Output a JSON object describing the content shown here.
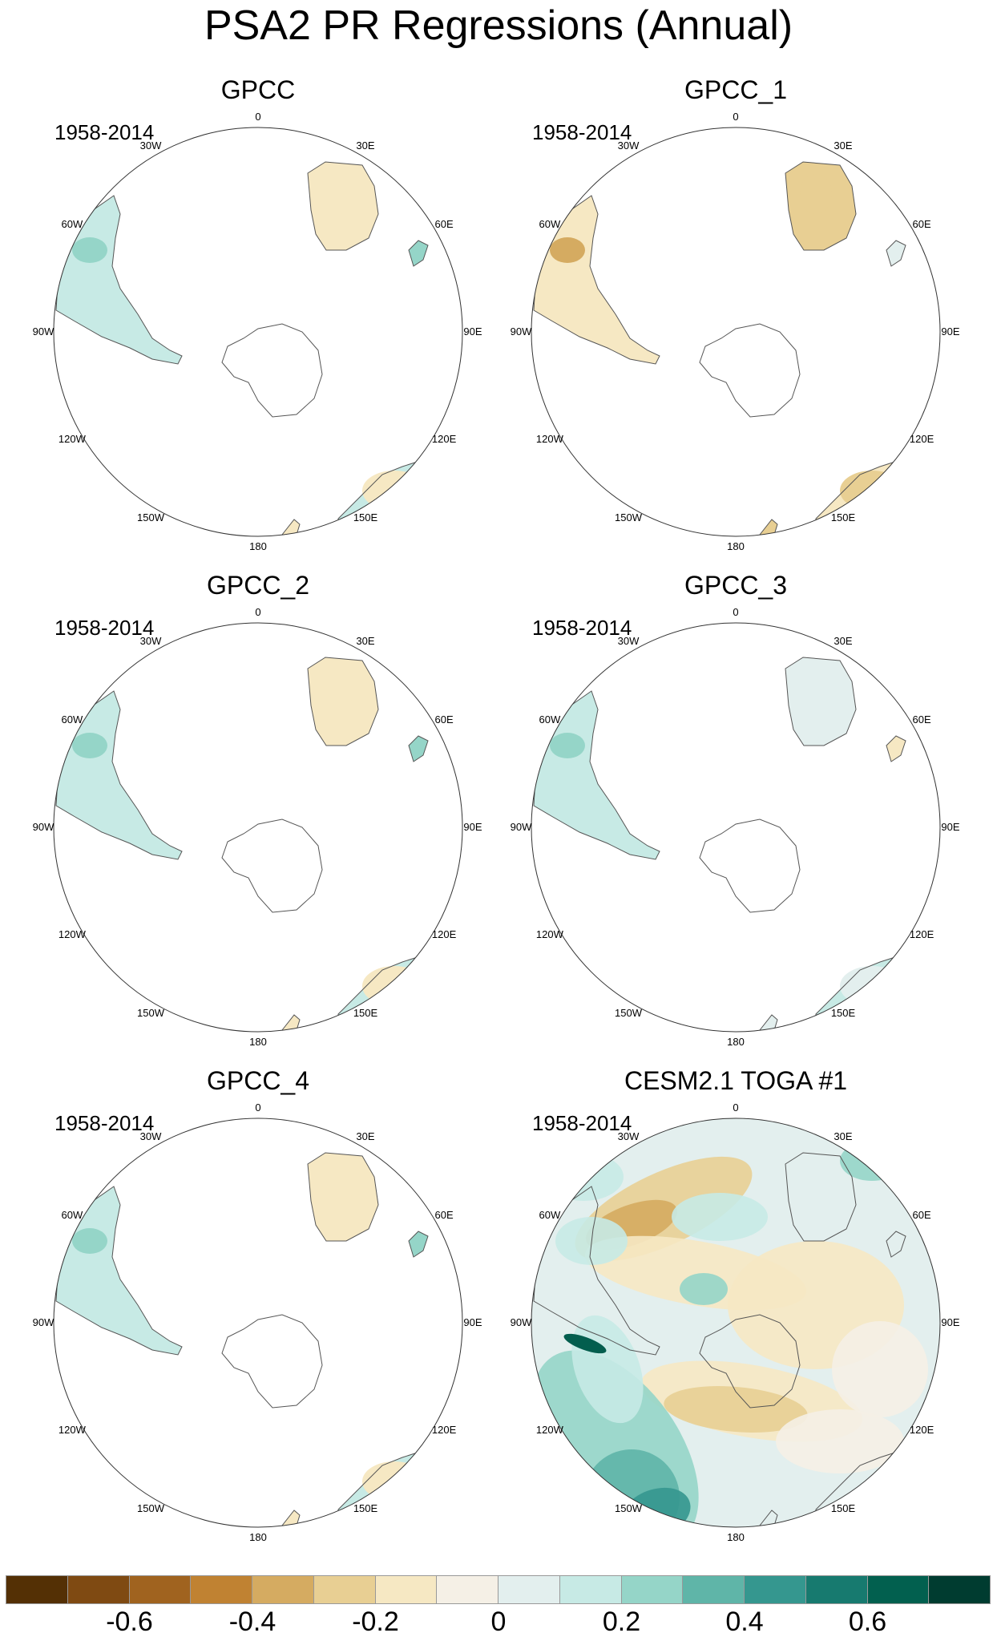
{
  "title": "PSA2 PR Regressions (Annual)",
  "panels": [
    {
      "title": "GPCC",
      "period": "1958-2014",
      "shading": "obs",
      "tone": "mixed"
    },
    {
      "title": "GPCC_1",
      "period": "1958-2014",
      "shading": "obs",
      "tone": "brown"
    },
    {
      "title": "GPCC_2",
      "period": "1958-2014",
      "shading": "obs",
      "tone": "mixed"
    },
    {
      "title": "GPCC_3",
      "period": "1958-2014",
      "shading": "obs",
      "tone": "teal"
    },
    {
      "title": "GPCC_4",
      "period": "1958-2014",
      "shading": "obs",
      "tone": "mixed"
    },
    {
      "title": "CESM2.1 TOGA #1",
      "period": "1958-2014",
      "shading": "model",
      "tone": "full"
    }
  ],
  "lon_labels": [
    "0",
    "30E",
    "60E",
    "90E",
    "120E",
    "150E",
    "180",
    "150W",
    "120W",
    "90W",
    "60W",
    "30W"
  ],
  "colorbar": {
    "colors": [
      "#543005",
      "#7f4a12",
      "#a0631f",
      "#c08232",
      "#d5ab61",
      "#e8cf93",
      "#f6e8c3",
      "#f5f0e6",
      "#e3efee",
      "#c7eae5",
      "#95d5c8",
      "#5fb5a8",
      "#35978f",
      "#177a6f",
      "#02604f",
      "#003c30"
    ],
    "labels": [
      "-0.6",
      "-0.4",
      "-0.2",
      "0",
      "0.2",
      "0.4",
      "0.6"
    ]
  }
}
